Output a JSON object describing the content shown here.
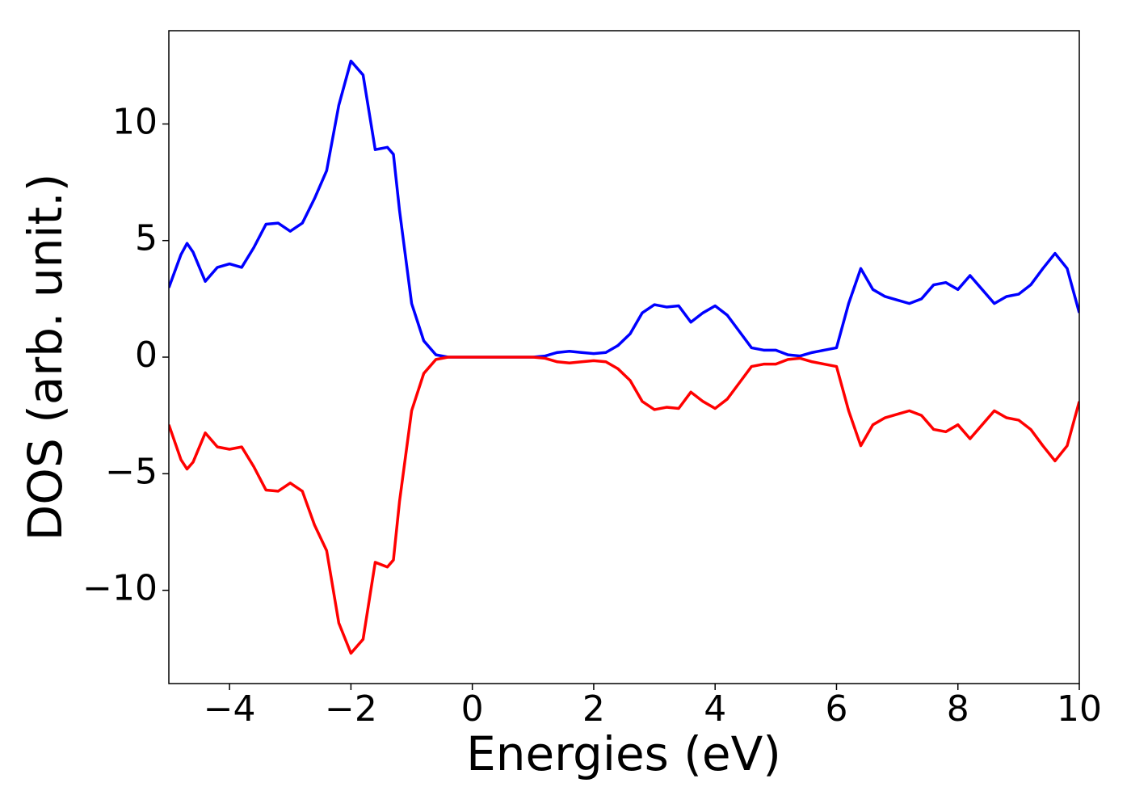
{
  "chart_data": {
    "type": "line",
    "xlabel": "Energies (eV)",
    "ylabel": "DOS (arb. unit.)",
    "x": [
      -5,
      -4.8,
      -4.7,
      -4.6,
      -4.4,
      -4.2,
      -4.0,
      -3.8,
      -3.6,
      -3.4,
      -3.2,
      -3.0,
      -2.8,
      -2.6,
      -2.4,
      -2.2,
      -2.0,
      -1.8,
      -1.6,
      -1.4,
      -1.3,
      -1.2,
      -1.0,
      -0.8,
      -0.6,
      -0.4,
      0,
      0.5,
      1.0,
      1.2,
      1.4,
      1.6,
      1.8,
      2.0,
      2.2,
      2.4,
      2.6,
      2.8,
      3.0,
      3.2,
      3.4,
      3.6,
      3.8,
      4.0,
      4.2,
      4.4,
      4.6,
      4.8,
      5.0,
      5.2,
      5.4,
      5.6,
      5.8,
      6.0,
      6.2,
      6.4,
      6.6,
      6.8,
      7.0,
      7.2,
      7.4,
      7.6,
      7.8,
      8.0,
      8.2,
      8.4,
      8.6,
      8.8,
      9.0,
      9.2,
      9.4,
      9.6,
      9.8,
      10.0
    ],
    "series": [
      {
        "color": "#0000ff",
        "values": [
          2.98,
          4.4,
          4.88,
          4.5,
          3.25,
          3.85,
          4.0,
          3.85,
          4.7,
          5.7,
          5.75,
          5.4,
          5.75,
          6.8,
          8.0,
          10.8,
          12.7,
          12.1,
          8.9,
          9.0,
          8.7,
          6.3,
          2.3,
          0.7,
          0.1,
          0,
          0,
          0,
          0,
          0.05,
          0.2,
          0.25,
          0.2,
          0.15,
          0.2,
          0.5,
          1.0,
          1.9,
          2.25,
          2.15,
          2.2,
          1.5,
          1.9,
          2.2,
          1.8,
          1.1,
          0.4,
          0.3,
          0.3,
          0.1,
          0.05,
          0.2,
          0.3,
          0.4,
          2.3,
          3.8,
          2.9,
          2.6,
          2.45,
          2.3,
          2.5,
          3.1,
          3.2,
          2.9,
          3.5,
          2.9,
          2.3,
          2.6,
          2.7,
          3.1,
          3.8,
          4.45,
          3.8,
          1.9
        ]
      },
      {
        "color": "#ff0000",
        "values": [
          -2.9,
          -4.4,
          -4.8,
          -4.5,
          -3.25,
          -3.85,
          -3.95,
          -3.85,
          -4.7,
          -5.7,
          -5.75,
          -5.4,
          -5.75,
          -7.2,
          -8.3,
          -11.4,
          -12.7,
          -12.1,
          -8.8,
          -9.0,
          -8.7,
          -6.2,
          -2.3,
          -0.7,
          -0.1,
          0,
          0,
          0,
          0,
          -0.05,
          -0.2,
          -0.25,
          -0.2,
          -0.15,
          -0.2,
          -0.5,
          -1.0,
          -1.9,
          -2.25,
          -2.15,
          -2.2,
          -1.5,
          -1.9,
          -2.2,
          -1.8,
          -1.1,
          -0.4,
          -0.3,
          -0.3,
          -0.1,
          -0.05,
          -0.2,
          -0.3,
          -0.4,
          -2.3,
          -3.8,
          -2.9,
          -2.6,
          -2.45,
          -2.3,
          -2.5,
          -3.1,
          -3.2,
          -2.9,
          -3.5,
          -2.9,
          -2.3,
          -2.6,
          -2.7,
          -3.1,
          -3.8,
          -4.45,
          -3.8,
          -1.9
        ]
      }
    ],
    "xlim": [
      -5,
      10
    ],
    "xticks": [
      {
        "value": -4,
        "label": "−4"
      },
      {
        "value": -2,
        "label": "−2"
      },
      0,
      2,
      4,
      6,
      8,
      10
    ],
    "ylim": [
      -14,
      14
    ],
    "yticks": [
      {
        "value": -10,
        "label": "−10"
      },
      {
        "value": -5,
        "label": "−5"
      },
      0,
      5,
      10
    ],
    "grid": false
  }
}
